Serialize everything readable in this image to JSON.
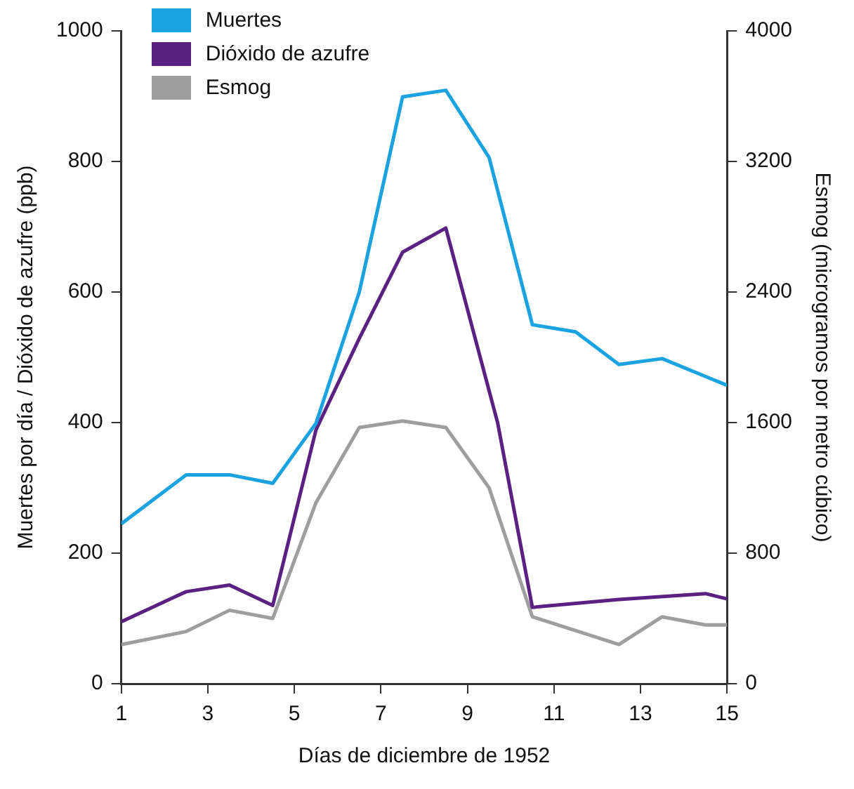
{
  "chart_data": {
    "type": "line",
    "xlabel": "Días de diciembre de 1952",
    "ylabel": "Muertes por día / Dióxido de azufre (ppb)",
    "y2label": "Esmog (microgramos por metro cúbico)",
    "xlim": [
      1,
      15
    ],
    "xticks": [
      1,
      3,
      5,
      7,
      9,
      11,
      13,
      15
    ],
    "ylim": [
      0,
      1000
    ],
    "yticks": [
      0,
      200,
      400,
      600,
      800,
      1000
    ],
    "y2lim": [
      0,
      4000
    ],
    "y2ticks": [
      0,
      800,
      1600,
      2400,
      3200,
      4000
    ],
    "grid": false,
    "legend": "top left",
    "marker": "none",
    "line_style": "solid",
    "series": [
      {
        "name": "Muertes",
        "color": "#1aa3e0",
        "x": [
          1,
          2.5,
          3.5,
          4.5,
          5.5,
          6.5,
          7.5,
          8.5,
          9.5,
          10.5,
          11.5,
          12.5,
          13.5,
          15
        ],
        "values": [
          245,
          320,
          320,
          307,
          399,
          600,
          899,
          909,
          806,
          550,
          539,
          489,
          498,
          457
        ]
      },
      {
        "name": "Dióxido de azufre",
        "color": "#5a2182",
        "x": [
          1,
          2.5,
          3.5,
          4.5,
          5.5,
          6.5,
          7.5,
          8.5,
          9.7,
          10.5,
          12.5,
          14.5,
          15
        ],
        "values": [
          95,
          141,
          151,
          120,
          389,
          529,
          661,
          698,
          399,
          117,
          129,
          138,
          130
        ]
      },
      {
        "name": "Esmog",
        "color": "#9e9e9e",
        "axis": "y2",
        "x": [
          1,
          2.5,
          3.5,
          4.5,
          5.5,
          6.5,
          7.5,
          8.5,
          9.5,
          10.5,
          12.5,
          13.5,
          14.5,
          15
        ],
        "values": [
          240,
          320,
          450,
          400,
          1110,
          1570,
          1610,
          1570,
          1200,
          410,
          240,
          410,
          360,
          360
        ]
      }
    ]
  }
}
